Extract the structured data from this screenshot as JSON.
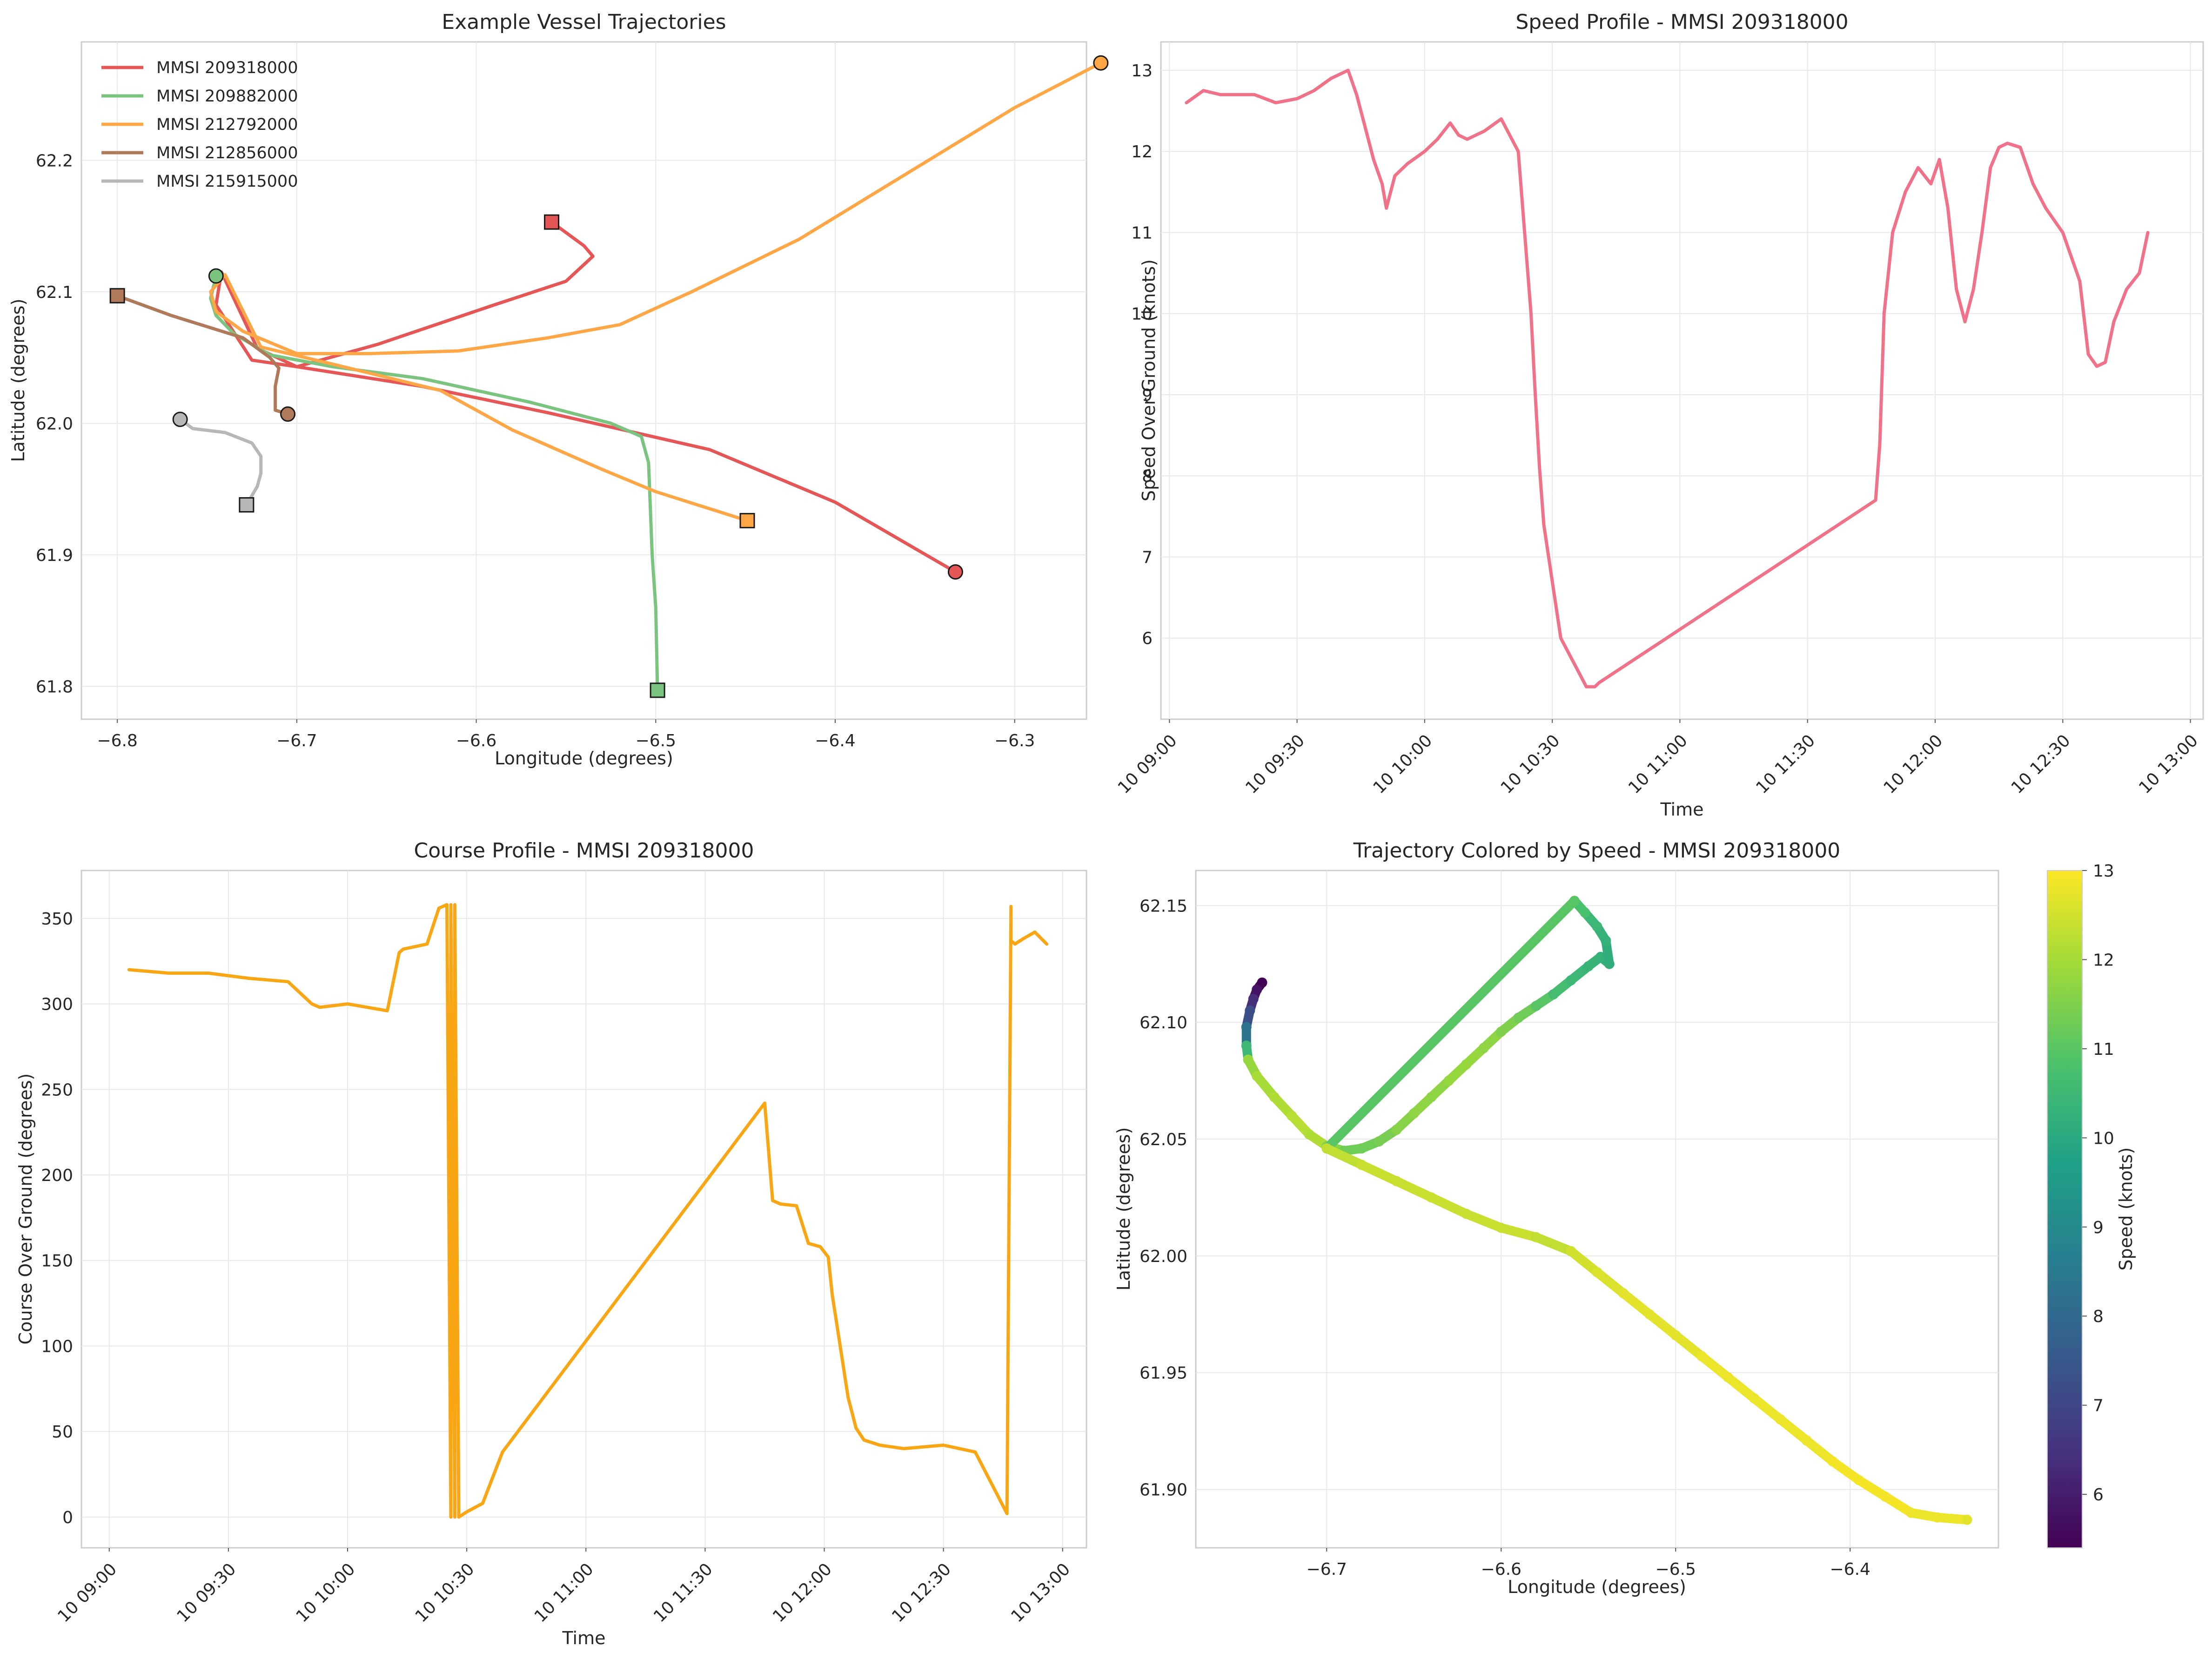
{
  "colors": {
    "vessel_209318000": "#e45756",
    "vessel_209882000": "#7bc47f",
    "vessel_212792000": "#ffa646",
    "vessel_212856000": "#b07a5a",
    "vessel_215915000": "#b7b7b7",
    "speed_line": "#f07289",
    "course_line": "#f8a614"
  },
  "chart_data": [
    {
      "type": "line",
      "title": "Example Vessel Trajectories",
      "xlabel": "Longitude (degrees)",
      "ylabel": "Latitude (degrees)",
      "xlim": [
        -6.82,
        -6.26
      ],
      "ylim": [
        61.775,
        62.29
      ],
      "xticks": [
        -6.8,
        -6.7,
        -6.6,
        -6.5,
        -6.4,
        -6.3
      ],
      "xtick_labels": [
        "−6.8",
        "−6.7",
        "−6.6",
        "−6.5",
        "−6.4",
        "−6.3"
      ],
      "yticks": [
        61.8,
        61.9,
        62.0,
        62.1,
        62.2
      ],
      "ytick_labels": [
        "61.8",
        "61.9",
        "62.0",
        "62.1",
        "62.2"
      ],
      "grid": true,
      "legend_position": "top-left",
      "markers": {
        "start": "circle",
        "end": "square"
      },
      "series": [
        {
          "name": "MMSI 209318000",
          "color": "#e45756",
          "x": [
            -6.333,
            -6.4,
            -6.47,
            -6.56,
            -6.63,
            -6.7,
            -6.725,
            -6.745,
            -6.742,
            -6.722,
            -6.7,
            -6.655,
            -6.59,
            -6.55,
            -6.535,
            -6.54,
            -6.558
          ],
          "y": [
            61.887,
            61.94,
            61.98,
            62.008,
            62.028,
            62.043,
            62.048,
            62.09,
            62.115,
            62.057,
            62.043,
            62.06,
            62.09,
            62.108,
            62.127,
            62.135,
            62.153
          ],
          "start": [
            -6.333,
            61.887
          ],
          "end": [
            -6.558,
            62.153
          ]
        },
        {
          "name": "MMSI 209882000",
          "color": "#7bc47f",
          "x": [
            -6.745,
            -6.748,
            -6.745,
            -6.735,
            -6.715,
            -6.68,
            -6.63,
            -6.57,
            -6.525,
            -6.508,
            -6.504,
            -6.502,
            -6.5,
            -6.499
          ],
          "y": [
            62.112,
            62.095,
            62.082,
            62.068,
            62.052,
            62.043,
            62.034,
            62.016,
            62.0,
            61.99,
            61.97,
            61.9,
            61.86,
            61.797
          ],
          "start": [
            -6.745,
            62.112
          ],
          "end": [
            -6.499,
            61.797
          ]
        },
        {
          "name": "MMSI 212792000",
          "color": "#ffa646",
          "x": [
            -6.252,
            -6.3,
            -6.36,
            -6.42,
            -6.48,
            -6.52,
            -6.56,
            -6.61,
            -6.66,
            -6.7,
            -6.73,
            -6.745,
            -6.748,
            -6.74,
            -6.72,
            -6.68,
            -6.62,
            -6.58,
            -6.53,
            -6.5,
            -6.449
          ],
          "y": [
            62.274,
            62.24,
            62.19,
            62.14,
            62.1,
            62.075,
            62.065,
            62.055,
            62.053,
            62.053,
            62.07,
            62.085,
            62.1,
            62.113,
            62.058,
            62.045,
            62.025,
            61.995,
            61.965,
            61.948,
            61.926
          ],
          "start": [
            -6.252,
            62.274
          ],
          "end": [
            -6.449,
            61.926
          ]
        },
        {
          "name": "MMSI 212856000",
          "color": "#b07a5a",
          "x": [
            -6.705,
            -6.712,
            -6.712,
            -6.71,
            -6.715,
            -6.73,
            -6.77,
            -6.8
          ],
          "y": [
            62.007,
            62.01,
            62.028,
            62.042,
            62.05,
            62.065,
            62.082,
            62.097
          ],
          "start": [
            -6.705,
            62.007
          ],
          "end": [
            -6.8,
            62.097
          ]
        },
        {
          "name": "MMSI 215915000",
          "color": "#b7b7b7",
          "x": [
            -6.765,
            -6.758,
            -6.74,
            -6.725,
            -6.72,
            -6.72,
            -6.722,
            -6.728
          ],
          "y": [
            62.003,
            61.996,
            61.993,
            61.985,
            61.975,
            61.962,
            61.952,
            61.938
          ],
          "start": [
            -6.765,
            62.003
          ],
          "end": [
            -6.728,
            61.938
          ]
        }
      ]
    },
    {
      "type": "line",
      "title": "Speed Profile - MMSI 209318000",
      "xlabel": "Time",
      "ylabel": "Speed Over Ground (knots)",
      "xlim": [
        "10 08:58",
        "13:03"
      ],
      "ylim": [
        5.0,
        13.35
      ],
      "xtick_labels": [
        "10 09:00",
        "10 09:30",
        "10 10:00",
        "10 10:30",
        "10 11:00",
        "10 11:30",
        "10 12:00",
        "10 12:30",
        "10 13:00"
      ],
      "xticks": [
        "09:00",
        "09:30",
        "10:00",
        "10:30",
        "11:00",
        "11:30",
        "12:00",
        "12:30",
        "13:00"
      ],
      "yticks": [
        6,
        7,
        8,
        9,
        10,
        11,
        12,
        13
      ],
      "ytick_labels": [
        "6",
        "7",
        "8",
        "9",
        "10",
        "11",
        "12",
        "13"
      ],
      "grid": true,
      "series": [
        {
          "color": "#f07289",
          "x": [
            "09:04",
            "09:08",
            "09:12",
            "09:16",
            "09:20",
            "09:25",
            "09:30",
            "09:34",
            "09:38",
            "09:42",
            "09:44",
            "09:46",
            "09:48",
            "09:50",
            "09:51",
            "09:52",
            "09:53",
            "09:56",
            "10:00",
            "10:03",
            "10:06",
            "10:08",
            "10:10",
            "10:12",
            "10:14",
            "10:18",
            "10:22",
            "10:25",
            "10:26",
            "10:27",
            "10:28",
            "10:30",
            "10:32",
            "10:35",
            "10:38",
            "10:40",
            "10:41",
            "11:46",
            "11:47",
            "11:48",
            "11:50",
            "11:53",
            "11:56",
            "11:59",
            "12:01",
            "12:03",
            "12:05",
            "12:07",
            "12:09",
            "12:11",
            "12:13",
            "12:15",
            "12:17",
            "12:20",
            "12:23",
            "12:26",
            "12:30",
            "12:34",
            "12:36",
            "12:38",
            "12:40",
            "12:42",
            "12:45",
            "12:48",
            "12:50"
          ],
          "y": [
            12.6,
            12.75,
            12.7,
            12.7,
            12.7,
            12.6,
            12.65,
            12.75,
            12.9,
            13.0,
            12.7,
            12.3,
            11.9,
            11.6,
            11.3,
            11.5,
            11.7,
            11.85,
            12.0,
            12.15,
            12.35,
            12.2,
            12.15,
            12.2,
            12.25,
            12.4,
            12.0,
            10.0,
            9.0,
            8.1,
            7.4,
            6.7,
            6.0,
            5.7,
            5.4,
            5.4,
            5.45,
            7.7,
            8.4,
            10.0,
            11.0,
            11.5,
            11.8,
            11.6,
            11.9,
            11.3,
            10.3,
            9.9,
            10.3,
            11.0,
            11.8,
            12.05,
            12.1,
            12.05,
            11.6,
            11.3,
            11.0,
            10.4,
            9.5,
            9.35,
            9.4,
            9.9,
            10.3,
            10.5,
            11.0
          ]
        }
      ]
    },
    {
      "type": "line",
      "title": "Course Profile - MMSI 209318000",
      "xlabel": "Time",
      "ylabel": "Course Over Ground (degrees)",
      "xlim": [
        "10 08:53",
        "13:06"
      ],
      "ylim": [
        -18,
        378
      ],
      "xtick_labels": [
        "10 09:00",
        "10 09:30",
        "10 10:00",
        "10 10:30",
        "10 11:00",
        "10 11:30",
        "10 12:00",
        "10 12:30",
        "10 13:00"
      ],
      "xticks": [
        "09:00",
        "09:30",
        "10:00",
        "10:30",
        "11:00",
        "11:30",
        "12:00",
        "12:30",
        "13:00"
      ],
      "yticks": [
        0,
        50,
        100,
        150,
        200,
        250,
        300,
        350
      ],
      "ytick_labels": [
        "0",
        "50",
        "100",
        "150",
        "200",
        "250",
        "300",
        "350"
      ],
      "grid": true,
      "series": [
        {
          "color": "#f8a614",
          "x": [
            "09:05",
            "09:15",
            "09:25",
            "09:35",
            "09:45",
            "09:51",
            "09:53",
            "10:00",
            "10:10",
            "10:13",
            "10:14",
            "10:20",
            "10:23",
            "10:25",
            "10:26",
            "10:26",
            "10:27",
            "10:27",
            "10:28",
            "10:30",
            "10:34",
            "10:39",
            "11:45",
            "11:47",
            "11:49",
            "11:53",
            "11:56",
            "11:59",
            "12:01",
            "12:02",
            "12:04",
            "12:06",
            "12:08",
            "12:10",
            "12:14",
            "12:20",
            "12:30",
            "12:38",
            "12:42",
            "12:46",
            "12:47",
            "12:47",
            "12:48",
            "12:50",
            "12:53",
            "12:56"
          ],
          "y": [
            320,
            318,
            318,
            315,
            313,
            300,
            298,
            300,
            296,
            330,
            332,
            335,
            356,
            358,
            0,
            358,
            0,
            358,
            0,
            3,
            8,
            38,
            242,
            185,
            183,
            182,
            160,
            158,
            152,
            130,
            100,
            70,
            52,
            45,
            42,
            40,
            42,
            38,
            20,
            2,
            357,
            337,
            335,
            338,
            342,
            335
          ]
        }
      ]
    },
    {
      "type": "scatter",
      "title": "Trajectory Colored by Speed - MMSI 209318000",
      "xlabel": "Longitude (degrees)",
      "ylabel": "Latitude (degrees)",
      "xlim": [
        -6.775,
        -6.315
      ],
      "ylim": [
        61.875,
        62.165
      ],
      "xticks": [
        -6.7,
        -6.6,
        -6.5,
        -6.4
      ],
      "xtick_labels": [
        "−6.7",
        "−6.6",
        "−6.5",
        "−6.4"
      ],
      "yticks": [
        61.9,
        61.95,
        62.0,
        62.05,
        62.1,
        62.15
      ],
      "ytick_labels": [
        "61.90",
        "61.95",
        "62.00",
        "62.05",
        "62.10",
        "62.15"
      ],
      "grid": true,
      "colorbar": {
        "label": "Speed (knots)",
        "range": [
          5.4,
          13.0
        ],
        "ticks": [
          6,
          7,
          8,
          9,
          10,
          11,
          12,
          13
        ],
        "tick_labels": [
          "6",
          "7",
          "8",
          "9",
          "10",
          "11",
          "12",
          "13"
        ],
        "colormap": "viridis"
      },
      "points": {
        "lon": [
          -6.737,
          -6.74,
          -6.742,
          -6.744,
          -6.746,
          -6.746,
          -6.745,
          -6.74,
          -6.73,
          -6.72,
          -6.71,
          -6.7,
          -6.69,
          -6.68,
          -6.67,
          -6.66,
          -6.65,
          -6.64,
          -6.63,
          -6.62,
          -6.61,
          -6.6,
          -6.59,
          -6.58,
          -6.57,
          -6.56,
          -6.55,
          -6.543,
          -6.538,
          -6.54,
          -6.545,
          -6.552,
          -6.558,
          -6.7,
          -6.68,
          -6.66,
          -6.64,
          -6.62,
          -6.6,
          -6.58,
          -6.56,
          -6.545,
          -6.53,
          -6.515,
          -6.5,
          -6.485,
          -6.47,
          -6.455,
          -6.44,
          -6.425,
          -6.41,
          -6.395,
          -6.38,
          -6.365,
          -6.35,
          -6.333
        ],
        "lat": [
          62.117,
          62.114,
          62.11,
          62.105,
          62.098,
          62.09,
          62.084,
          62.077,
          62.068,
          62.06,
          62.052,
          62.047,
          62.045,
          62.046,
          62.049,
          62.054,
          62.061,
          62.068,
          62.075,
          62.082,
          62.089,
          62.096,
          62.102,
          62.107,
          62.112,
          62.118,
          62.124,
          62.128,
          62.125,
          62.135,
          62.141,
          62.147,
          62.152,
          62.046,
          62.039,
          62.032,
          62.025,
          62.018,
          62.012,
          62.008,
          62.002,
          61.993,
          61.984,
          61.975,
          61.966,
          61.957,
          61.948,
          61.939,
          61.93,
          61.921,
          61.912,
          61.904,
          61.897,
          61.89,
          61.888,
          61.887
        ],
        "speed": [
          5.4,
          5.8,
          6.4,
          7.2,
          8.3,
          10.5,
          11.8,
          12.0,
          12.1,
          12.2,
          12.1,
          11.6,
          11.3,
          11.3,
          11.4,
          11.6,
          11.7,
          11.7,
          11.8,
          11.8,
          11.7,
          11.5,
          11.3,
          11.0,
          10.7,
          10.5,
          10.4,
          10.3,
          10.2,
          10.3,
          10.5,
          10.8,
          11.0,
          12.3,
          12.4,
          12.4,
          12.4,
          12.4,
          12.4,
          12.3,
          12.5,
          12.6,
          12.7,
          12.7,
          12.7,
          12.8,
          12.8,
          12.8,
          12.8,
          12.8,
          12.9,
          12.9,
          12.9,
          12.8,
          12.8,
          12.7
        ]
      }
    }
  ]
}
